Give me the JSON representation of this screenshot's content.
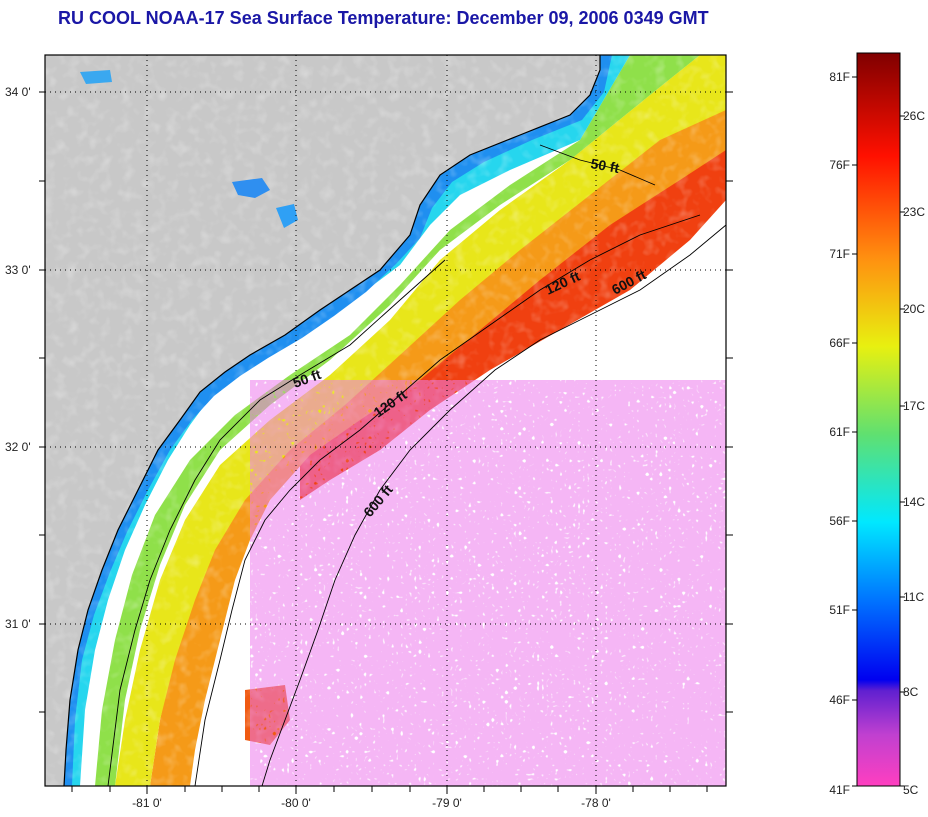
{
  "title": "RU COOL  NOAA-17  Sea Surface Temperature:  December 09, 2006 0349 GMT",
  "map": {
    "lon_ticks": [
      "-81 0'",
      "-80 0'",
      "-79 0'",
      "-78 0'"
    ],
    "lat_ticks": [
      "34 0'",
      "33 0'",
      "32 0'",
      "31 0'"
    ],
    "contours": [
      {
        "label": "50 ft"
      },
      {
        "label": "50 ft"
      },
      {
        "label": "120 ft"
      },
      {
        "label": "120 ft"
      },
      {
        "label": "600 ft"
      },
      {
        "label": "600 ft"
      }
    ],
    "colors": {
      "land": "#c8c8c8",
      "cloud": "#ffffff",
      "frame": "#000000"
    }
  },
  "colorbar": {
    "f_labels": [
      "81F",
      "76F",
      "71F",
      "66F",
      "61F",
      "56F",
      "51F",
      "46F",
      "41F"
    ],
    "c_labels": [
      "26C",
      "23C",
      "20C",
      "17C",
      "14C",
      "11C",
      "8C",
      "5C"
    ]
  }
}
